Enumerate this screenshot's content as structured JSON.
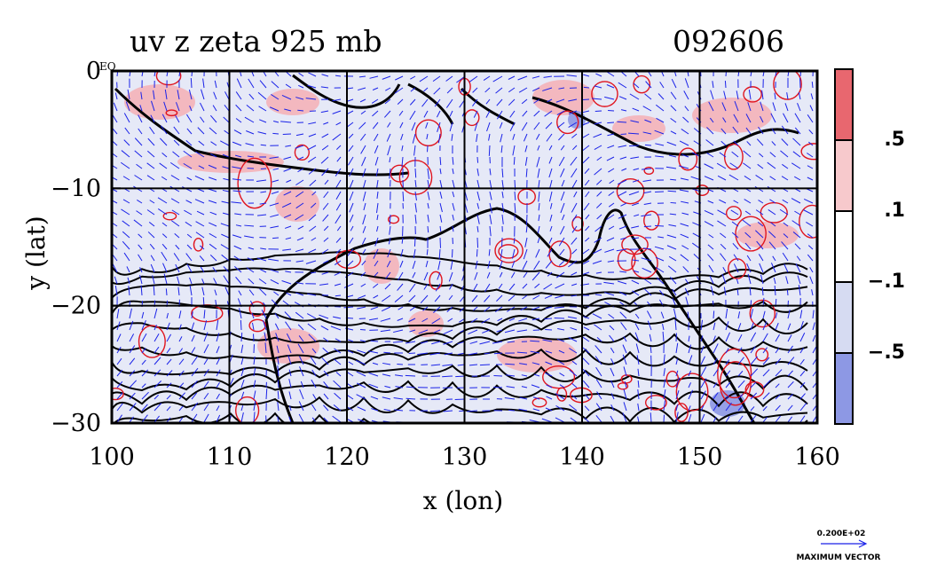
{
  "chart_data": {
    "type": "contour-vector",
    "title": "uv z zeta 925 mb",
    "timestamp": "092606",
    "xlabel": "x (lon)",
    "ylabel": "y (lat)",
    "xlim": [
      100,
      160
    ],
    "ylim": [
      -30,
      0
    ],
    "x_ticks": [
      100,
      110,
      120,
      130,
      140,
      150,
      160
    ],
    "y_ticks": [
      0,
      -10,
      -20,
      -30
    ],
    "y_tick_labels": [
      "0",
      "−10",
      "−20",
      "−30"
    ],
    "corner_label": "EQ",
    "grid": true,
    "colorbar": {
      "levels": [
        {
          "label": ".5",
          "color": "#e8676f"
        },
        {
          "label": ".1",
          "color": "#f7c9cc"
        },
        {
          "label": "−.1",
          "color": "#ffffff"
        },
        {
          "label": "−.5",
          "color": "#d6dbf2"
        },
        {
          "label": "",
          "color": "#8d98e4"
        }
      ]
    },
    "vector_legend": {
      "magnitude": "0.200E+02",
      "caption": "MAXIMUM VECTOR"
    },
    "colors": {
      "vectors": "#1a22e8",
      "contours_red": "#e0141e",
      "contours_black": "#000000",
      "fill_neg": "#d6dbf2",
      "fill_pos": "#f4b3b8",
      "land": "#000000"
    }
  }
}
